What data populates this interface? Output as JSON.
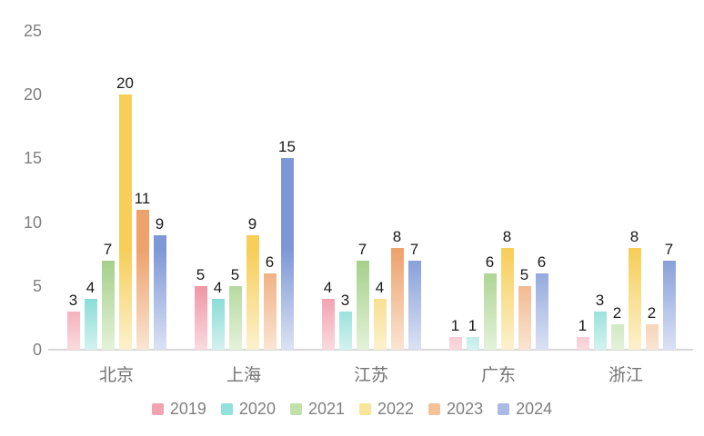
{
  "chart_data": {
    "type": "bar",
    "title": "",
    "xlabel": "",
    "ylabel": "",
    "categories": [
      "北京",
      "上海",
      "江苏",
      "广东",
      "浙江"
    ],
    "series": [
      {
        "name": "2019",
        "color": "#EC6F84",
        "color_pale": "#FADADF",
        "legend_color": "#F2A2B1",
        "values": [
          3,
          5,
          4,
          1,
          1
        ]
      },
      {
        "name": "2020",
        "color": "#45C8BF",
        "color_pale": "#D3F2EF",
        "legend_color": "#94E0DA",
        "values": [
          4,
          4,
          3,
          1,
          3
        ]
      },
      {
        "name": "2021",
        "color": "#9ECC80",
        "color_pale": "#E4F2DA",
        "legend_color": "#C2E1AA",
        "values": [
          7,
          5,
          7,
          6,
          2
        ]
      },
      {
        "name": "2022",
        "color": "#F6CE58",
        "color_pale": "#FCF1CE",
        "legend_color": "#F9E599",
        "values": [
          20,
          9,
          4,
          8,
          8
        ]
      },
      {
        "name": "2023",
        "color": "#EEA26C",
        "color_pale": "#FAE5D3",
        "legend_color": "#F3C299",
        "values": [
          11,
          6,
          8,
          5,
          2
        ]
      },
      {
        "name": "2024",
        "color": "#7E98D7",
        "color_pale": "#DBE2F4",
        "legend_color": "#ABBAE5",
        "values": [
          9,
          15,
          7,
          6,
          7
        ]
      }
    ],
    "y_ticks": [
      0,
      5,
      10,
      15,
      20,
      25
    ],
    "ylim": [
      0,
      25
    ],
    "grid": "off",
    "legend_position": "bottom"
  },
  "style_colors": {
    "background": "#FFFFFF",
    "axis_line": "#D8D8D8",
    "tick_label": "#808080",
    "category_label": "#737373",
    "data_label": "#1A1A1A",
    "legend_label": "#808080"
  }
}
